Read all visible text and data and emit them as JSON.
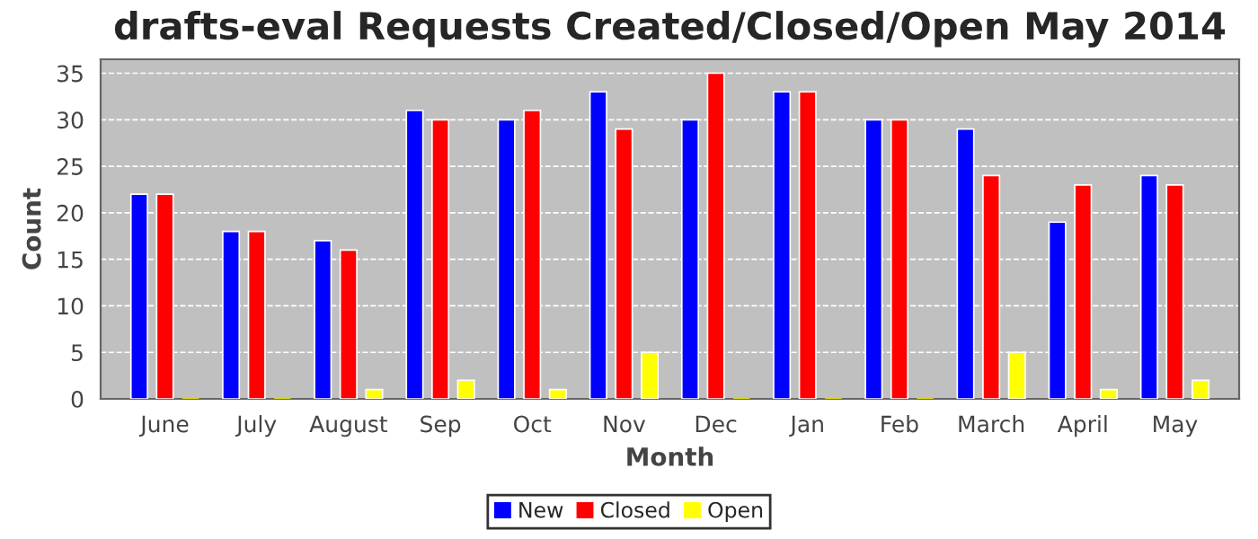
{
  "chart_data": {
    "type": "bar",
    "title": "drafts-eval Requests Created/Closed/Open May 2014",
    "xlabel": "Month",
    "ylabel": "Count",
    "categories": [
      "June",
      "July",
      "August",
      "Sep",
      "Oct",
      "Nov",
      "Dec",
      "Jan",
      "Feb",
      "March",
      "April",
      "May"
    ],
    "series": [
      {
        "name": "New",
        "color": "#0000ff",
        "values": [
          22,
          18,
          17,
          31,
          30,
          33,
          30,
          33,
          30,
          29,
          19,
          24
        ]
      },
      {
        "name": "Closed",
        "color": "#ff0000",
        "values": [
          22,
          18,
          16,
          30,
          31,
          29,
          35,
          33,
          30,
          24,
          23,
          23
        ]
      },
      {
        "name": "Open",
        "color": "#ffff00",
        "values": [
          0,
          0,
          1,
          2,
          1,
          5,
          0,
          0,
          0,
          5,
          1,
          2
        ]
      }
    ],
    "ylim": [
      0,
      36.5
    ],
    "yticks": [
      0,
      5,
      10,
      15,
      20,
      25,
      30,
      35
    ],
    "grid": "y",
    "legend": "bottom"
  }
}
